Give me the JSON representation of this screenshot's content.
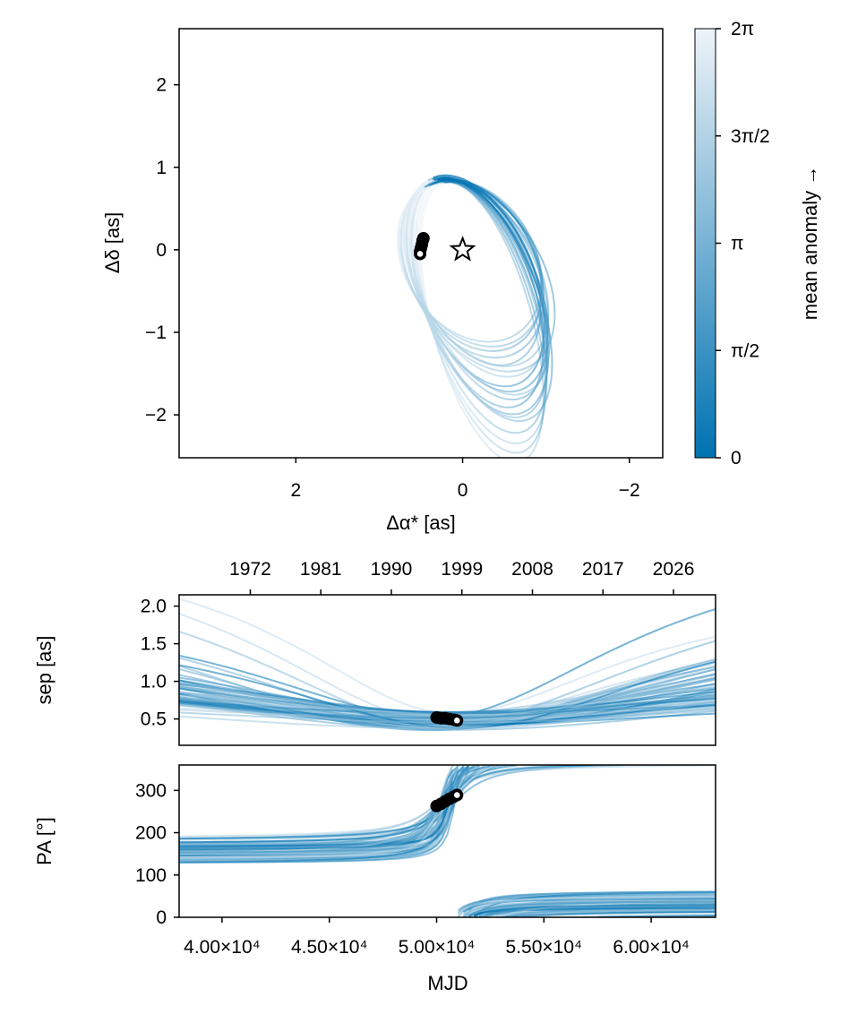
{
  "chart_data": [
    {
      "type": "line",
      "description_role": "orbit sky plot",
      "xlabel": "Δα* [as]",
      "ylabel": "Δδ [as]",
      "xlim": [
        3.4,
        -2.4
      ],
      "ylim": [
        -2.52,
        2.68
      ],
      "x_ticks": [
        2,
        0,
        -2
      ],
      "x_tick_labels": [
        "2",
        "0",
        "−2"
      ],
      "y_ticks": [
        -2,
        -1,
        0,
        1,
        2
      ],
      "y_tick_labels": [
        "−2",
        "−1",
        "0",
        "1",
        "2"
      ],
      "star_marker": {
        "x": 0,
        "y": 0,
        "symbol": "star"
      },
      "observations": [
        {
          "x": 0.47,
          "y": 0.14
        },
        {
          "x": 0.48,
          "y": 0.11
        },
        {
          "x": 0.49,
          "y": 0.06
        },
        {
          "x": 0.5,
          "y": 0.02
        },
        {
          "x": 0.51,
          "y": -0.02
        },
        {
          "x": 0.51,
          "y": -0.05
        }
      ],
      "orbit_samples": [
        {
          "a": 1.35,
          "e": 0.3,
          "omega_deg": 68,
          "inc_scale": 0.55,
          "opacity": 0.75
        },
        {
          "a": 1.5,
          "e": 0.4,
          "omega_deg": 70,
          "inc_scale": 0.5,
          "opacity": 0.6
        },
        {
          "a": 1.2,
          "e": 0.25,
          "omega_deg": 65,
          "inc_scale": 0.6,
          "opacity": 0.55
        },
        {
          "a": 1.6,
          "e": 0.45,
          "omega_deg": 72,
          "inc_scale": 0.45,
          "opacity": 0.5
        },
        {
          "a": 1.1,
          "e": 0.2,
          "omega_deg": 62,
          "inc_scale": 0.7,
          "opacity": 0.6
        },
        {
          "a": 1.4,
          "e": 0.35,
          "omega_deg": 66,
          "inc_scale": 0.52,
          "opacity": 0.45
        },
        {
          "a": 1.7,
          "e": 0.5,
          "omega_deg": 74,
          "inc_scale": 0.42,
          "opacity": 0.4
        },
        {
          "a": 1.25,
          "e": 0.3,
          "omega_deg": 60,
          "inc_scale": 0.65,
          "opacity": 0.5
        },
        {
          "a": 1.55,
          "e": 0.42,
          "omega_deg": 69,
          "inc_scale": 0.48,
          "opacity": 0.55
        },
        {
          "a": 1.05,
          "e": 0.15,
          "omega_deg": 58,
          "inc_scale": 0.75,
          "opacity": 0.45
        },
        {
          "a": 1.45,
          "e": 0.38,
          "omega_deg": 71,
          "inc_scale": 0.5,
          "opacity": 0.65
        },
        {
          "a": 1.3,
          "e": 0.28,
          "omega_deg": 64,
          "inc_scale": 0.58,
          "opacity": 0.4
        },
        {
          "a": 1.65,
          "e": 0.48,
          "omega_deg": 73,
          "inc_scale": 0.44,
          "opacity": 0.35
        },
        {
          "a": 1.15,
          "e": 0.22,
          "omega_deg": 63,
          "inc_scale": 0.68,
          "opacity": 0.55
        },
        {
          "a": 1.38,
          "e": 0.33,
          "omega_deg": 67,
          "inc_scale": 0.54,
          "opacity": 0.7
        },
        {
          "a": 1.52,
          "e": 0.41,
          "omega_deg": 70,
          "inc_scale": 0.47,
          "opacity": 0.5
        },
        {
          "a": 1.22,
          "e": 0.27,
          "omega_deg": 61,
          "inc_scale": 0.62,
          "opacity": 0.45
        },
        {
          "a": 1.75,
          "e": 0.52,
          "omega_deg": 75,
          "inc_scale": 0.4,
          "opacity": 0.3
        },
        {
          "a": 1.42,
          "e": 0.36,
          "omega_deg": 68,
          "inc_scale": 0.51,
          "opacity": 0.6
        },
        {
          "a": 1.08,
          "e": 0.18,
          "omega_deg": 59,
          "inc_scale": 0.72,
          "opacity": 0.5
        }
      ],
      "colormap": {
        "from": "#0072b2",
        "to": "#eef3f7"
      }
    },
    {
      "type": "colorbar",
      "label": "mean anomaly →",
      "range": [
        0,
        6.2832
      ],
      "ticks": [
        0,
        1.5708,
        3.1416,
        4.7124,
        6.2832
      ],
      "tick_labels": [
        "0",
        "π/2",
        "π",
        "3π/2",
        "2π"
      ]
    },
    {
      "type": "line",
      "description_role": "separation vs time",
      "ylabel": "sep [as]",
      "xlim": [
        38000,
        63000
      ],
      "ylim": [
        0.15,
        2.15
      ],
      "y_ticks": [
        0.5,
        1.0,
        1.5,
        2.0
      ],
      "y_tick_labels": [
        "0.5",
        "1.0",
        "1.5",
        "2.0"
      ],
      "top_axis_ticks_mjd": [
        41317,
        44604,
        47891,
        51179,
        54466,
        57753,
        61040
      ],
      "top_axis_tick_labels": [
        "1972",
        "1981",
        "1990",
        "1999",
        "2008",
        "2017",
        "2026"
      ],
      "observations": [
        {
          "x": 50000,
          "y": 0.52
        },
        {
          "x": 50200,
          "y": 0.51
        },
        {
          "x": 50400,
          "y": 0.51
        },
        {
          "x": 50600,
          "y": 0.5
        },
        {
          "x": 50800,
          "y": 0.49
        },
        {
          "x": 50950,
          "y": 0.48
        }
      ]
    },
    {
      "type": "line",
      "description_role": "position angle vs time",
      "xlabel": "MJD",
      "ylabel": "PA [°]",
      "xlim": [
        38000,
        63000
      ],
      "ylim": [
        0,
        360
      ],
      "x_ticks": [
        40000,
        45000,
        50000,
        55000,
        60000
      ],
      "x_tick_labels": [
        "4.00×10⁴",
        "4.50×10⁴",
        "5.00×10⁴",
        "5.50×10⁴",
        "6.00×10⁴"
      ],
      "y_ticks": [
        0,
        100,
        200,
        300
      ],
      "y_tick_labels": [
        "0",
        "100",
        "200",
        "300"
      ],
      "observations": [
        {
          "x": 50000,
          "y": 263
        },
        {
          "x": 50200,
          "y": 268
        },
        {
          "x": 50400,
          "y": 274
        },
        {
          "x": 50600,
          "y": 280
        },
        {
          "x": 50800,
          "y": 285
        },
        {
          "x": 50950,
          "y": 289
        }
      ]
    }
  ]
}
